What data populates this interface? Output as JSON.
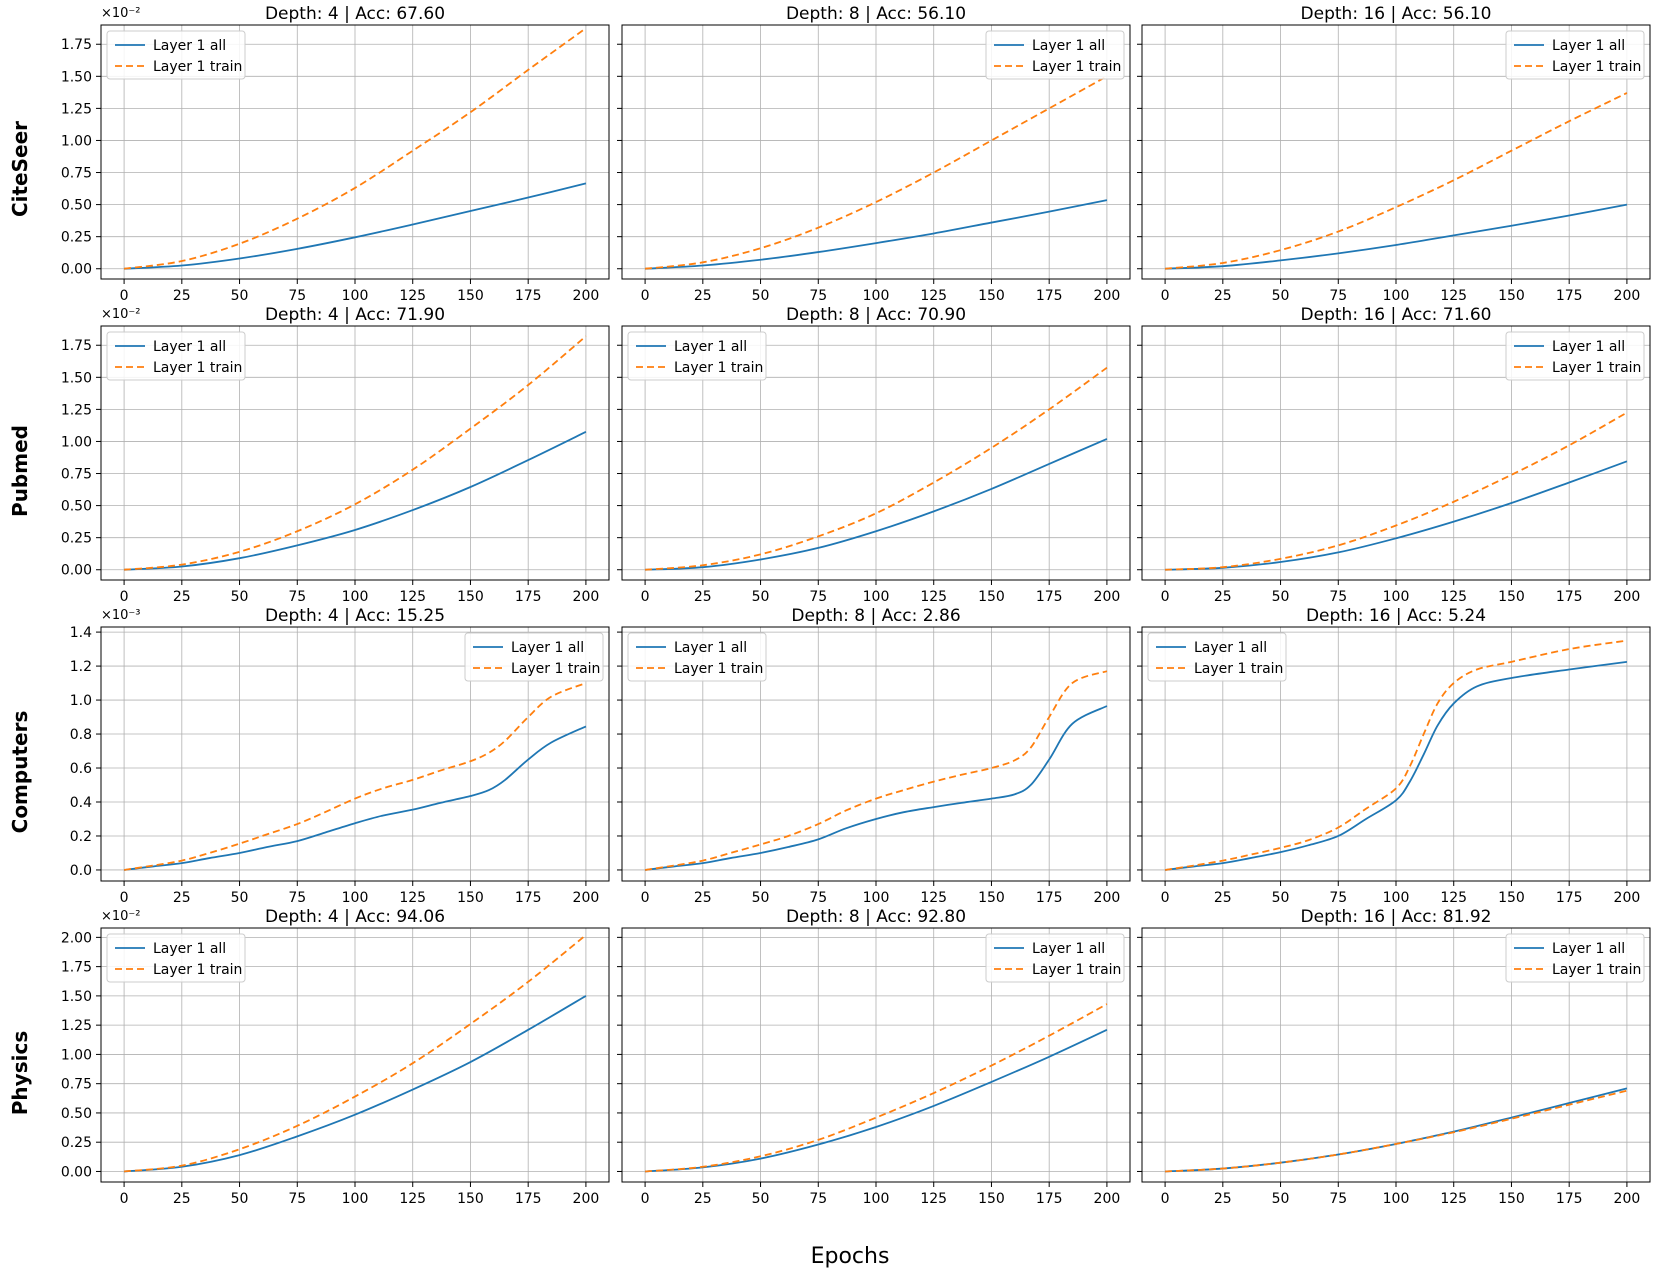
{
  "figure": {
    "xlabel": "Epochs"
  },
  "legend_labels": [
    "Layer 1 all",
    "Layer 1 train"
  ],
  "colors": {
    "all": "#1f77b4",
    "train": "#ff7f0e",
    "grid": "#b0b0b0"
  },
  "rows": [
    {
      "label": "CiteSeer",
      "exponent": "×10⁻²"
    },
    {
      "label": "Pubmed",
      "exponent": "×10⁻²"
    },
    {
      "label": "Computers",
      "exponent": "×10⁻³"
    },
    {
      "label": "Physics",
      "exponent": "×10⁻²"
    }
  ],
  "chart_data": [
    {
      "type": "line",
      "dataset": "CiteSeer",
      "title": "Depth: 4 | Acc: 67.60",
      "legend": "top-left",
      "xlim": [
        -10,
        210
      ],
      "ylim": [
        -0.08,
        1.9
      ],
      "xticks": [
        0,
        25,
        50,
        75,
        100,
        125,
        150,
        175,
        200
      ],
      "yticks": [
        0.0,
        0.25,
        0.5,
        0.75,
        1.0,
        1.25,
        1.5,
        1.75
      ],
      "ytick_labels": [
        "0.00",
        "0.25",
        "0.50",
        "0.75",
        "1.00",
        "1.25",
        "1.50",
        "1.75"
      ],
      "x": [
        0,
        25,
        50,
        75,
        100,
        125,
        150,
        175,
        200
      ],
      "series": [
        {
          "name": "Layer 1 all",
          "values": [
            0.0,
            0.025,
            0.08,
            0.155,
            0.245,
            0.345,
            0.45,
            0.555,
            0.665
          ]
        },
        {
          "name": "Layer 1 train",
          "values": [
            0.0,
            0.06,
            0.195,
            0.39,
            0.63,
            0.92,
            1.22,
            1.55,
            1.875
          ]
        }
      ]
    },
    {
      "type": "line",
      "dataset": "CiteSeer",
      "title": "Depth: 8 | Acc: 56.10",
      "legend": "top-right",
      "xlim": [
        -10,
        210
      ],
      "ylim": [
        -0.08,
        1.9
      ],
      "xticks": [
        0,
        25,
        50,
        75,
        100,
        125,
        150,
        175,
        200
      ],
      "yticks": [
        0.0,
        0.25,
        0.5,
        0.75,
        1.0,
        1.25,
        1.5,
        1.75
      ],
      "ytick_labels": [
        "0.00",
        "0.25",
        "0.50",
        "0.75",
        "1.00",
        "1.25",
        "1.50",
        "1.75"
      ],
      "x": [
        0,
        25,
        50,
        75,
        100,
        125,
        150,
        175,
        200
      ],
      "series": [
        {
          "name": "Layer 1 all",
          "values": [
            0.0,
            0.025,
            0.07,
            0.13,
            0.2,
            0.275,
            0.36,
            0.445,
            0.535
          ]
        },
        {
          "name": "Layer 1 train",
          "values": [
            0.0,
            0.05,
            0.16,
            0.32,
            0.52,
            0.75,
            1.0,
            1.25,
            1.5
          ]
        }
      ]
    },
    {
      "type": "line",
      "dataset": "CiteSeer",
      "title": "Depth: 16 | Acc: 56.10",
      "legend": "top-right",
      "xlim": [
        -10,
        210
      ],
      "ylim": [
        -0.08,
        1.9
      ],
      "xticks": [
        0,
        25,
        50,
        75,
        100,
        125,
        150,
        175,
        200
      ],
      "yticks": [
        0.0,
        0.25,
        0.5,
        0.75,
        1.0,
        1.25,
        1.5,
        1.75
      ],
      "ytick_labels": [
        "0.00",
        "0.25",
        "0.50",
        "0.75",
        "1.00",
        "1.25",
        "1.50",
        "1.75"
      ],
      "x": [
        0,
        25,
        50,
        75,
        100,
        125,
        150,
        175,
        200
      ],
      "series": [
        {
          "name": "Layer 1 all",
          "values": [
            0.0,
            0.02,
            0.065,
            0.12,
            0.185,
            0.26,
            0.335,
            0.415,
            0.5
          ]
        },
        {
          "name": "Layer 1 train",
          "values": [
            0.0,
            0.045,
            0.145,
            0.29,
            0.48,
            0.69,
            0.92,
            1.15,
            1.37
          ]
        }
      ]
    },
    {
      "type": "line",
      "dataset": "Pubmed",
      "title": "Depth: 4 | Acc: 71.90",
      "legend": "top-left",
      "xlim": [
        -10,
        210
      ],
      "ylim": [
        -0.08,
        1.9
      ],
      "xticks": [
        0,
        25,
        50,
        75,
        100,
        125,
        150,
        175,
        200
      ],
      "yticks": [
        0.0,
        0.25,
        0.5,
        0.75,
        1.0,
        1.25,
        1.5,
        1.75
      ],
      "ytick_labels": [
        "0.00",
        "0.25",
        "0.50",
        "0.75",
        "1.00",
        "1.25",
        "1.50",
        "1.75"
      ],
      "x": [
        0,
        25,
        50,
        75,
        100,
        125,
        150,
        175,
        200
      ],
      "series": [
        {
          "name": "Layer 1 all",
          "values": [
            0.0,
            0.025,
            0.09,
            0.19,
            0.31,
            0.465,
            0.645,
            0.855,
            1.075
          ]
        },
        {
          "name": "Layer 1 train",
          "values": [
            0.0,
            0.04,
            0.14,
            0.3,
            0.51,
            0.78,
            1.1,
            1.44,
            1.82
          ]
        }
      ]
    },
    {
      "type": "line",
      "dataset": "Pubmed",
      "title": "Depth: 8 | Acc: 70.90",
      "legend": "top-left",
      "xlim": [
        -10,
        210
      ],
      "ylim": [
        -0.08,
        1.9
      ],
      "xticks": [
        0,
        25,
        50,
        75,
        100,
        125,
        150,
        175,
        200
      ],
      "yticks": [
        0.0,
        0.25,
        0.5,
        0.75,
        1.0,
        1.25,
        1.5,
        1.75
      ],
      "ytick_labels": [
        "0.00",
        "0.25",
        "0.50",
        "0.75",
        "1.00",
        "1.25",
        "1.50",
        "1.75"
      ],
      "x": [
        0,
        25,
        50,
        75,
        100,
        125,
        150,
        175,
        200
      ],
      "series": [
        {
          "name": "Layer 1 all",
          "values": [
            0.0,
            0.02,
            0.08,
            0.17,
            0.3,
            0.455,
            0.63,
            0.825,
            1.02
          ]
        },
        {
          "name": "Layer 1 train",
          "values": [
            0.0,
            0.035,
            0.12,
            0.26,
            0.44,
            0.68,
            0.95,
            1.25,
            1.575
          ]
        }
      ]
    },
    {
      "type": "line",
      "dataset": "Pubmed",
      "title": "Depth: 16 | Acc: 71.60",
      "legend": "top-right",
      "xlim": [
        -10,
        210
      ],
      "ylim": [
        -0.08,
        1.9
      ],
      "xticks": [
        0,
        25,
        50,
        75,
        100,
        125,
        150,
        175,
        200
      ],
      "yticks": [
        0.0,
        0.25,
        0.5,
        0.75,
        1.0,
        1.25,
        1.5,
        1.75
      ],
      "ytick_labels": [
        "0.00",
        "0.25",
        "0.50",
        "0.75",
        "1.00",
        "1.25",
        "1.50",
        "1.75"
      ],
      "x": [
        0,
        25,
        50,
        75,
        100,
        125,
        150,
        175,
        200
      ],
      "series": [
        {
          "name": "Layer 1 all",
          "values": [
            0.0,
            0.015,
            0.06,
            0.135,
            0.245,
            0.375,
            0.52,
            0.68,
            0.845
          ]
        },
        {
          "name": "Layer 1 train",
          "values": [
            0.0,
            0.02,
            0.085,
            0.19,
            0.345,
            0.53,
            0.74,
            0.97,
            1.225
          ]
        }
      ]
    },
    {
      "type": "line",
      "dataset": "Computers",
      "title": "Depth: 4 | Acc: 15.25",
      "legend": "top-right",
      "xlim": [
        -10,
        210
      ],
      "ylim": [
        -0.065,
        1.43
      ],
      "xticks": [
        0,
        25,
        50,
        75,
        100,
        125,
        150,
        175,
        200
      ],
      "yticks": [
        0.0,
        0.2,
        0.4,
        0.6,
        0.8,
        1.0,
        1.2,
        1.4
      ],
      "ytick_labels": [
        "0.0",
        "0.2",
        "0.4",
        "0.6",
        "0.8",
        "1.0",
        "1.2",
        "1.4"
      ],
      "x": [
        0,
        12,
        25,
        37,
        50,
        62,
        75,
        87,
        100,
        112,
        125,
        137,
        150,
        158,
        165,
        175,
        185,
        200
      ],
      "series": [
        {
          "name": "Layer 1 all",
          "values": [
            0.0,
            0.02,
            0.04,
            0.07,
            0.1,
            0.135,
            0.17,
            0.22,
            0.275,
            0.32,
            0.355,
            0.395,
            0.435,
            0.47,
            0.53,
            0.65,
            0.75,
            0.845
          ]
        },
        {
          "name": "Layer 1 train",
          "values": [
            0.0,
            0.025,
            0.055,
            0.1,
            0.155,
            0.21,
            0.27,
            0.34,
            0.42,
            0.48,
            0.53,
            0.585,
            0.64,
            0.69,
            0.76,
            0.9,
            1.02,
            1.1
          ]
        }
      ]
    },
    {
      "type": "line",
      "dataset": "Computers",
      "title": "Depth: 8 | Acc: 2.86",
      "legend": "top-left",
      "xlim": [
        -10,
        210
      ],
      "ylim": [
        -0.065,
        1.43
      ],
      "xticks": [
        0,
        25,
        50,
        75,
        100,
        125,
        150,
        175,
        200
      ],
      "yticks": [
        0.0,
        0.2,
        0.4,
        0.6,
        0.8,
        1.0,
        1.2,
        1.4
      ],
      "ytick_labels": [
        "0.0",
        "0.2",
        "0.4",
        "0.6",
        "0.8",
        "1.0",
        "1.2",
        "1.4"
      ],
      "x": [
        0,
        12,
        25,
        37,
        50,
        62,
        75,
        87,
        100,
        112,
        125,
        137,
        150,
        160,
        167,
        175,
        185,
        200
      ],
      "series": [
        {
          "name": "Layer 1 all",
          "values": [
            0.0,
            0.02,
            0.04,
            0.07,
            0.1,
            0.135,
            0.18,
            0.245,
            0.3,
            0.34,
            0.37,
            0.395,
            0.42,
            0.445,
            0.5,
            0.65,
            0.86,
            0.965
          ]
        },
        {
          "name": "Layer 1 train",
          "values": [
            0.0,
            0.025,
            0.055,
            0.1,
            0.15,
            0.2,
            0.27,
            0.35,
            0.42,
            0.47,
            0.52,
            0.56,
            0.6,
            0.645,
            0.72,
            0.9,
            1.1,
            1.17
          ]
        }
      ]
    },
    {
      "type": "line",
      "dataset": "Computers",
      "title": "Depth: 16 | Acc: 5.24",
      "legend": "top-left",
      "xlim": [
        -10,
        210
      ],
      "ylim": [
        -0.065,
        1.43
      ],
      "xticks": [
        0,
        25,
        50,
        75,
        100,
        125,
        150,
        175,
        200
      ],
      "yticks": [
        0.0,
        0.2,
        0.4,
        0.6,
        0.8,
        1.0,
        1.2,
        1.4
      ],
      "ytick_labels": [
        "0.0",
        "0.2",
        "0.4",
        "0.6",
        "0.8",
        "1.0",
        "1.2",
        "1.4"
      ],
      "x": [
        0,
        12,
        25,
        37,
        50,
        62,
        75,
        87,
        100,
        106,
        112,
        118,
        125,
        135,
        150,
        175,
        200
      ],
      "series": [
        {
          "name": "Layer 1 all",
          "values": [
            0.0,
            0.02,
            0.04,
            0.07,
            0.105,
            0.145,
            0.2,
            0.3,
            0.41,
            0.52,
            0.68,
            0.85,
            0.98,
            1.08,
            1.13,
            1.18,
            1.225
          ]
        },
        {
          "name": "Layer 1 train",
          "values": [
            0.0,
            0.025,
            0.055,
            0.09,
            0.13,
            0.175,
            0.25,
            0.36,
            0.48,
            0.61,
            0.8,
            0.98,
            1.1,
            1.18,
            1.225,
            1.3,
            1.35
          ]
        }
      ]
    },
    {
      "type": "line",
      "dataset": "Physics",
      "title": "Depth: 4 | Acc: 94.06",
      "legend": "top-left",
      "xlim": [
        -10,
        210
      ],
      "ylim": [
        -0.09,
        2.08
      ],
      "xticks": [
        0,
        25,
        50,
        75,
        100,
        125,
        150,
        175,
        200
      ],
      "yticks": [
        0.0,
        0.25,
        0.5,
        0.75,
        1.0,
        1.25,
        1.5,
        1.75,
        2.0
      ],
      "ytick_labels": [
        "0.00",
        "0.25",
        "0.50",
        "0.75",
        "1.00",
        "1.25",
        "1.50",
        "1.75",
        "2.00"
      ],
      "x": [
        0,
        25,
        50,
        75,
        100,
        125,
        150,
        175,
        200
      ],
      "series": [
        {
          "name": "Layer 1 all",
          "values": [
            0.0,
            0.04,
            0.14,
            0.3,
            0.485,
            0.7,
            0.935,
            1.21,
            1.5
          ]
        },
        {
          "name": "Layer 1 train",
          "values": [
            0.0,
            0.05,
            0.19,
            0.39,
            0.64,
            0.925,
            1.26,
            1.62,
            2.02
          ]
        }
      ]
    },
    {
      "type": "line",
      "dataset": "Physics",
      "title": "Depth: 8 | Acc: 92.80",
      "legend": "top-right",
      "xlim": [
        -10,
        210
      ],
      "ylim": [
        -0.09,
        2.08
      ],
      "xticks": [
        0,
        25,
        50,
        75,
        100,
        125,
        150,
        175,
        200
      ],
      "yticks": [
        0.0,
        0.25,
        0.5,
        0.75,
        1.0,
        1.25,
        1.5,
        1.75,
        2.0
      ],
      "ytick_labels": [
        "0.00",
        "0.25",
        "0.50",
        "0.75",
        "1.00",
        "1.25",
        "1.50",
        "1.75",
        "2.00"
      ],
      "x": [
        0,
        25,
        50,
        75,
        100,
        125,
        150,
        175,
        200
      ],
      "series": [
        {
          "name": "Layer 1 all",
          "values": [
            0.0,
            0.035,
            0.11,
            0.23,
            0.38,
            0.56,
            0.765,
            0.98,
            1.21
          ]
        },
        {
          "name": "Layer 1 train",
          "values": [
            0.0,
            0.04,
            0.13,
            0.27,
            0.46,
            0.67,
            0.905,
            1.16,
            1.43
          ]
        }
      ]
    },
    {
      "type": "line",
      "dataset": "Physics",
      "title": "Depth: 16 | Acc: 81.92",
      "legend": "top-right",
      "xlim": [
        -10,
        210
      ],
      "ylim": [
        -0.09,
        2.08
      ],
      "xticks": [
        0,
        25,
        50,
        75,
        100,
        125,
        150,
        175,
        200
      ],
      "yticks": [
        0.0,
        0.25,
        0.5,
        0.75,
        1.0,
        1.25,
        1.5,
        1.75,
        2.0
      ],
      "ytick_labels": [
        "0.00",
        "0.25",
        "0.50",
        "0.75",
        "1.00",
        "1.25",
        "1.50",
        "1.75",
        "2.00"
      ],
      "x": [
        0,
        25,
        50,
        75,
        100,
        125,
        150,
        175,
        200
      ],
      "series": [
        {
          "name": "Layer 1 all",
          "values": [
            0.0,
            0.025,
            0.075,
            0.145,
            0.235,
            0.34,
            0.46,
            0.585,
            0.71
          ]
        },
        {
          "name": "Layer 1 train",
          "values": [
            0.0,
            0.025,
            0.075,
            0.145,
            0.235,
            0.335,
            0.45,
            0.57,
            0.69
          ]
        }
      ]
    }
  ]
}
